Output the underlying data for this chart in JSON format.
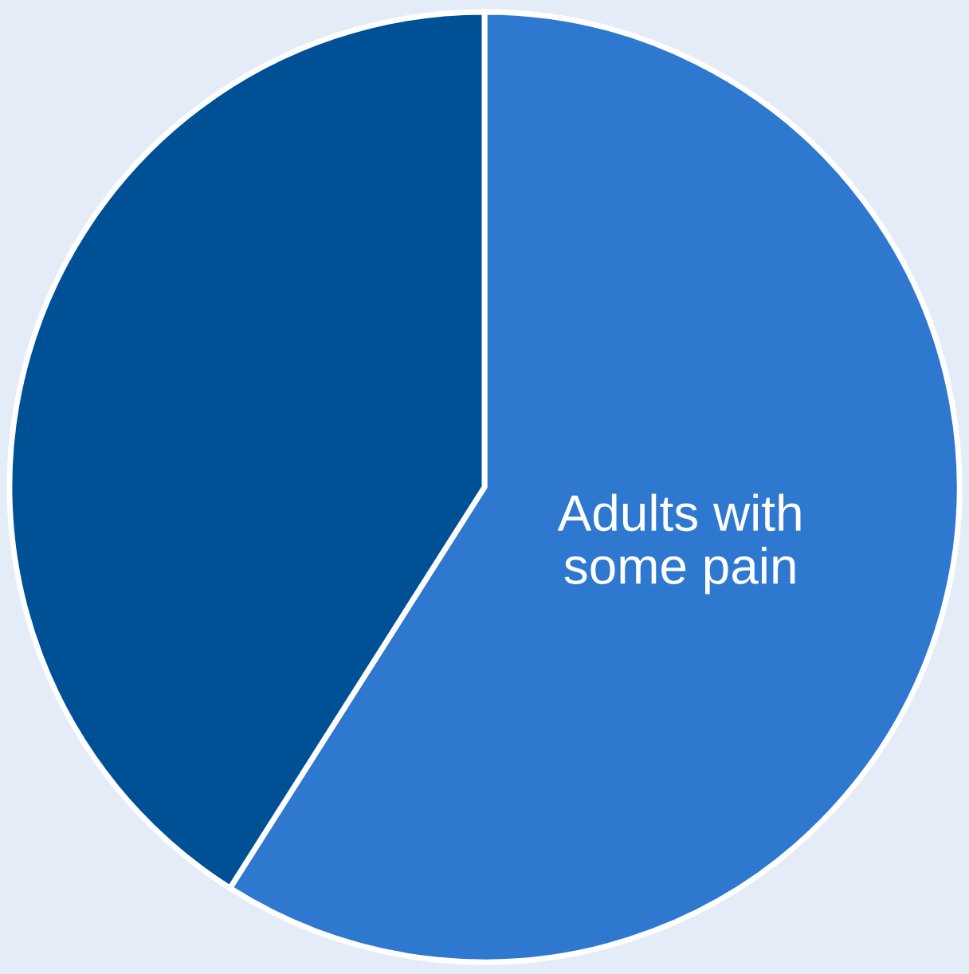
{
  "chart_data": {
    "type": "pie",
    "categories": [
      "Adults with some pain",
      null
    ],
    "values": [
      59,
      41
    ],
    "colors": [
      "#2e78d0",
      "#005096"
    ]
  }
}
